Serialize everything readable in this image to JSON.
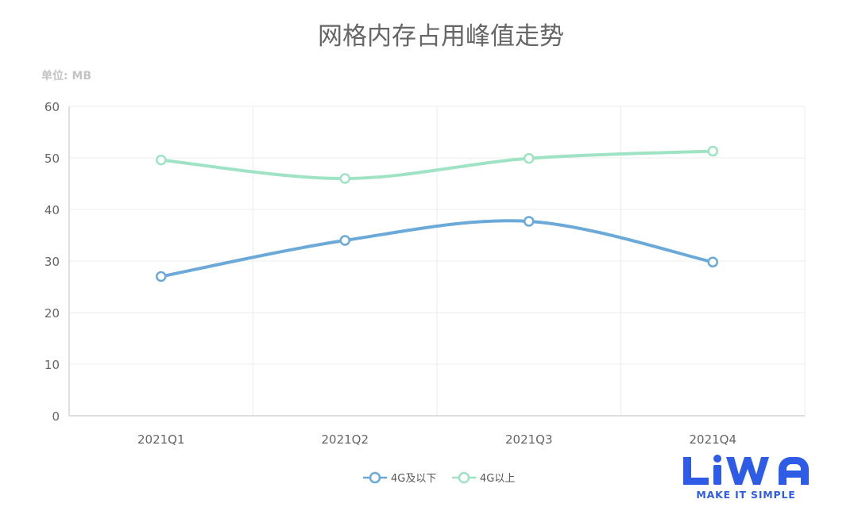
{
  "chart_data": {
    "type": "line",
    "title": "网格内存占用峰值走势",
    "unit_label": "单位: MB",
    "categories": [
      "2021Q1",
      "2021Q2",
      "2021Q3",
      "2021Q4"
    ],
    "series": [
      {
        "name": "4G及以下",
        "values": [
          27,
          34,
          37.7,
          29.8
        ],
        "color": "#6aa9d8"
      },
      {
        "name": "4G以上",
        "values": [
          49.6,
          46,
          49.9,
          51.3
        ],
        "color": "#9fe3c5"
      }
    ],
    "y_ticks": [
      "0",
      "10",
      "20",
      "30",
      "40",
      "50",
      "60"
    ],
    "ylim": [
      0,
      60
    ],
    "grid": true,
    "smooth": true,
    "legend_position": "bottom-center"
  },
  "logo": {
    "wordmark": "LiWA",
    "tagline": "MAKE IT SIMPLE",
    "color": "#2f5ce6"
  }
}
